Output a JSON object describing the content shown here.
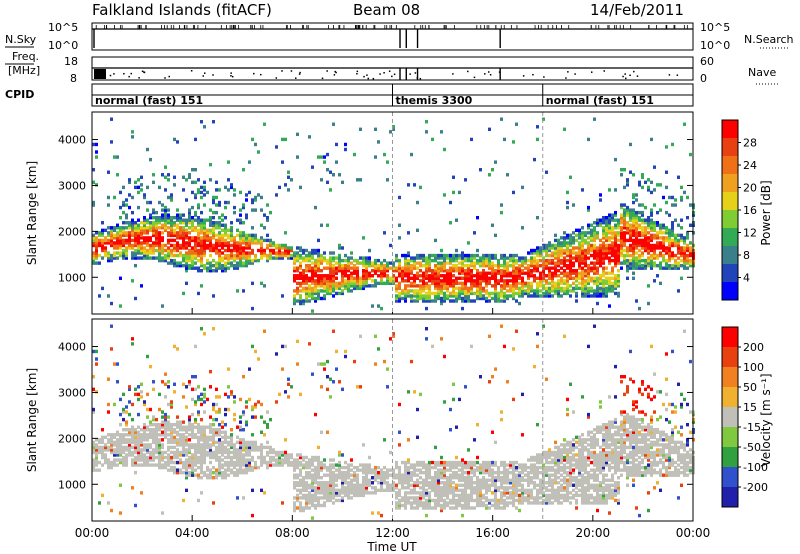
{
  "header": {
    "station": "Falkland Islands (fitACF)",
    "beam": "Beam 08",
    "date": "14/Feb/2011"
  },
  "top_panel": {
    "left_label": "N.Sky",
    "right_label": "N.Search",
    "left_ticks": [
      "10^5",
      "10^0"
    ],
    "right_ticks": [
      "10^5",
      "10^0"
    ]
  },
  "freq_panel": {
    "left_label_line1": "Freq.",
    "left_label_line2": "[MHz]",
    "left_ticks": [
      "18",
      "8"
    ],
    "right_label": "Nave",
    "right_ticks": [
      "60",
      "0"
    ]
  },
  "cpid": {
    "label": "CPID",
    "segments": [
      {
        "name": "normal (fast) 151",
        "start_hour": 0
      },
      {
        "name": "themis 3300",
        "start_hour": 12
      },
      {
        "name": "normal (fast) 151",
        "start_hour": 18
      }
    ]
  },
  "chart_data": [
    {
      "type": "heatmap",
      "title": "",
      "xlabel": "",
      "ylabel": "Slant Range [km]",
      "xlim": [
        0,
        24
      ],
      "ylim": [
        200,
        4600
      ],
      "y_ticks": [
        "1000",
        "2000",
        "3000",
        "4000"
      ],
      "colorbar_label": "Power [dB]",
      "colorbar_ticks": [
        "4",
        "8",
        "12",
        "16",
        "20",
        "24",
        "28"
      ],
      "colorbar_colors": [
        "#0000ff",
        "#2244bb",
        "#3a7f8a",
        "#33aa55",
        "#7fcc33",
        "#e6d01a",
        "#f0a020",
        "#f07018",
        "#e84010",
        "#ff0000"
      ]
    },
    {
      "type": "heatmap",
      "title": "",
      "xlabel": "Time UT",
      "ylabel": "Slant Range [km]",
      "xlim": [
        0,
        24
      ],
      "ylim": [
        200,
        4600
      ],
      "y_ticks": [
        "1000",
        "2000",
        "3000",
        "4000"
      ],
      "x_ticks": [
        "00:00",
        "04:00",
        "08:00",
        "12:00",
        "16:00",
        "20:00",
        "00:00"
      ],
      "colorbar_label": "Velocity [m s⁻¹]",
      "colorbar_ticks": [
        "200",
        "100",
        "50",
        "15",
        "-15",
        "-50",
        "-100",
        "-200"
      ],
      "colorbar_colors": [
        "#2020aa",
        "#3050cc",
        "#30a040",
        "#80c840",
        "#c0c0b8",
        "#f0b030",
        "#f08020",
        "#e84010",
        "#ff0000"
      ]
    }
  ],
  "colors": {
    "ground_scatter": "#c0c0b8"
  }
}
